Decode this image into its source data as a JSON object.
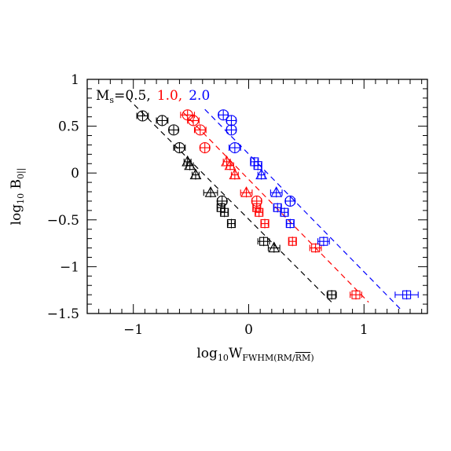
{
  "chart_data": {
    "type": "scatter",
    "title": "",
    "xlabel_main": "log",
    "xlabel_sub": "10",
    "xlabel_var": "W",
    "xlabel_varsub": "FWHM(RM/",
    "xlabel_varsub_bar": "RM",
    "xlabel_varsub_close": ")",
    "ylabel_main": "log",
    "ylabel_sub": "10",
    "ylabel_var": "B",
    "ylabel_varsub": "0||",
    "xlim": [
      -1.4,
      1.55
    ],
    "ylim": [
      -1.5,
      1.0
    ],
    "xticks": [
      -1,
      0,
      1
    ],
    "xtick_labels": [
      "−1",
      "0",
      "1"
    ],
    "yticks": [
      -1.5,
      -1,
      -0.5,
      0,
      0.5,
      1
    ],
    "ytick_labels": [
      "−1.5",
      "−1",
      "−0.5",
      "0",
      "0.5",
      "1"
    ],
    "grid": false,
    "legend": {
      "placement": "top-left",
      "prefix": "M",
      "prefix_sub": "s",
      "entries": [
        {
          "label": "=0.5,",
          "color": "#000000"
        },
        {
          "label": "1.0,",
          "color": "#ff0000"
        },
        {
          "label": "2.0",
          "color": "#0000ff"
        }
      ]
    },
    "series": [
      {
        "color": "#000000",
        "fit_line": [
          [
            -1.05,
            0.8
          ],
          [
            0.72,
            -1.38
          ]
        ],
        "points": [
          {
            "x": -0.92,
            "y": 0.61,
            "marker": "circle",
            "xerr": 0.05
          },
          {
            "x": -0.75,
            "y": 0.56,
            "marker": "circle",
            "xerr": 0.05
          },
          {
            "x": -0.65,
            "y": 0.46,
            "marker": "circle",
            "xerr": 0.04
          },
          {
            "x": -0.6,
            "y": 0.27,
            "marker": "circle",
            "xerr": 0.05
          },
          {
            "x": -0.53,
            "y": 0.12,
            "marker": "triangle",
            "xerr": 0.03
          },
          {
            "x": -0.51,
            "y": 0.08,
            "marker": "triangle",
            "xerr": 0.03
          },
          {
            "x": -0.46,
            "y": -0.02,
            "marker": "triangle",
            "xerr": 0.03
          },
          {
            "x": -0.33,
            "y": -0.21,
            "marker": "triangle",
            "xerr": 0.06
          },
          {
            "x": -0.23,
            "y": -0.3,
            "marker": "circle",
            "xerr": 0.04
          },
          {
            "x": -0.24,
            "y": -0.37,
            "marker": "square",
            "xerr": 0.03
          },
          {
            "x": -0.21,
            "y": -0.42,
            "marker": "square",
            "xerr": 0.03
          },
          {
            "x": -0.15,
            "y": -0.54,
            "marker": "square",
            "xerr": 0.03
          },
          {
            "x": 0.13,
            "y": -0.73,
            "marker": "square",
            "xerr": 0.05
          },
          {
            "x": 0.22,
            "y": -0.8,
            "marker": "triangle",
            "xerr": 0.05
          },
          {
            "x": 0.72,
            "y": -1.3,
            "marker": "square",
            "xerr": 0.04
          }
        ]
      },
      {
        "color": "#ff0000",
        "fit_line": [
          [
            -0.57,
            0.65
          ],
          [
            1.04,
            -1.38
          ]
        ],
        "points": [
          {
            "x": -0.53,
            "y": 0.62,
            "marker": "circle",
            "xerr": 0.06
          },
          {
            "x": -0.48,
            "y": 0.56,
            "marker": "circle",
            "xerr": 0.05
          },
          {
            "x": -0.42,
            "y": 0.46,
            "marker": "circle",
            "xerr": 0.05
          },
          {
            "x": -0.38,
            "y": 0.27,
            "marker": "circle",
            "xerr": 0.04
          },
          {
            "x": -0.19,
            "y": 0.12,
            "marker": "triangle",
            "xerr": 0.03
          },
          {
            "x": -0.16,
            "y": 0.08,
            "marker": "triangle",
            "xerr": 0.03
          },
          {
            "x": -0.12,
            "y": -0.02,
            "marker": "triangle",
            "xerr": 0.03
          },
          {
            "x": -0.02,
            "y": -0.21,
            "marker": "triangle",
            "xerr": 0.05
          },
          {
            "x": 0.07,
            "y": -0.3,
            "marker": "circle",
            "xerr": 0.04
          },
          {
            "x": 0.07,
            "y": -0.37,
            "marker": "square",
            "xerr": 0.03
          },
          {
            "x": 0.09,
            "y": -0.42,
            "marker": "square",
            "xerr": 0.03
          },
          {
            "x": 0.14,
            "y": -0.54,
            "marker": "square",
            "xerr": 0.03
          },
          {
            "x": 0.38,
            "y": -0.73,
            "marker": "square",
            "xerr": 0.03
          },
          {
            "x": 0.58,
            "y": -0.8,
            "marker": "square",
            "xerr": 0.05
          },
          {
            "x": 0.93,
            "y": -1.3,
            "marker": "square",
            "xerr": 0.05
          }
        ]
      },
      {
        "color": "#0000ff",
        "fit_line": [
          [
            -0.38,
            0.68
          ],
          [
            1.33,
            -1.47
          ]
        ],
        "points": [
          {
            "x": -0.22,
            "y": 0.62,
            "marker": "circle",
            "xerr": 0.04
          },
          {
            "x": -0.15,
            "y": 0.56,
            "marker": "circle",
            "xerr": 0.04
          },
          {
            "x": -0.15,
            "y": 0.46,
            "marker": "circle",
            "xerr": 0.04
          },
          {
            "x": -0.12,
            "y": 0.27,
            "marker": "circle",
            "xerr": 0.05
          },
          {
            "x": 0.05,
            "y": 0.12,
            "marker": "square",
            "xerr": 0.03
          },
          {
            "x": 0.08,
            "y": 0.08,
            "marker": "square",
            "xerr": 0.03
          },
          {
            "x": 0.11,
            "y": -0.02,
            "marker": "triangle",
            "xerr": 0.03
          },
          {
            "x": 0.24,
            "y": -0.21,
            "marker": "triangle",
            "xerr": 0.05
          },
          {
            "x": 0.36,
            "y": -0.3,
            "marker": "circle",
            "xerr": 0.04
          },
          {
            "x": 0.25,
            "y": -0.37,
            "marker": "square",
            "xerr": 0.03
          },
          {
            "x": 0.31,
            "y": -0.42,
            "marker": "square",
            "xerr": 0.03
          },
          {
            "x": 0.36,
            "y": -0.54,
            "marker": "square",
            "xerr": 0.03
          },
          {
            "x": 0.65,
            "y": -0.73,
            "marker": "square",
            "xerr": 0.05
          },
          {
            "x": 1.37,
            "y": -1.3,
            "marker": "square",
            "xerr": 0.1
          }
        ]
      }
    ]
  }
}
